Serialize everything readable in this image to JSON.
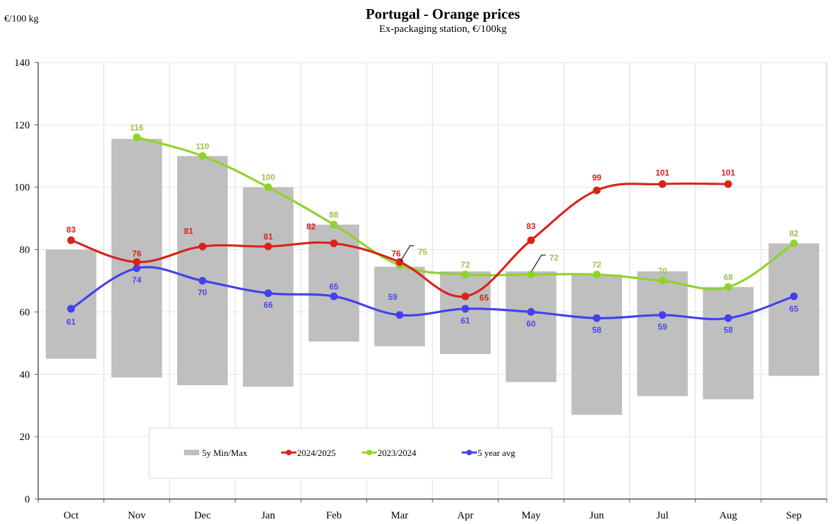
{
  "chart_data": {
    "type": "bar+line",
    "title": "Portugal  -  Orange prices",
    "subtitle": "Ex-packaging  station, €/100kg",
    "ylabel": "€/100 kg",
    "xlabel": "",
    "ylim": [
      0,
      140
    ],
    "yticks": [
      0,
      20,
      40,
      60,
      80,
      100,
      120,
      140
    ],
    "grid": true,
    "legend_position": "bottom-center",
    "categories": [
      "Oct",
      "Nov",
      "Dec",
      "Jan",
      "Feb",
      "Mar",
      "Apr",
      "May",
      "Jun",
      "Jul",
      "Aug",
      "Sep"
    ],
    "range_series": {
      "name": "5y Min/Max",
      "color": "#bfbfbf",
      "min": [
        45,
        39,
        36.5,
        36,
        50.5,
        49,
        46.5,
        37.5,
        27,
        33,
        32,
        39.5
      ],
      "max": [
        80,
        115.5,
        110,
        100,
        88,
        74.5,
        73,
        73,
        72,
        73,
        68,
        82
      ]
    },
    "series": [
      {
        "name": "2024/2025",
        "color": "#d9231a",
        "values": [
          83,
          76,
          81,
          81,
          82,
          76,
          65,
          83,
          99,
          101,
          101,
          null
        ],
        "labels": [
          "83",
          "76",
          "81",
          "81",
          "82",
          "76",
          "65",
          "83",
          "99",
          "101",
          "101",
          ""
        ]
      },
      {
        "name": "2023/2024",
        "color": "#8fd32a",
        "label_color": "#9cc24a",
        "values": [
          null,
          116,
          110,
          100,
          88,
          75,
          72,
          72,
          72,
          70,
          68,
          82
        ],
        "labels": [
          "",
          "116",
          "110",
          "100",
          "88",
          "75",
          "72",
          "72",
          "72",
          "70",
          "68",
          "82"
        ]
      },
      {
        "name": "5 year avg",
        "color": "#4141ee",
        "label_color": "#4a4ae0",
        "values": [
          61,
          74,
          70,
          66,
          65,
          59,
          61,
          60,
          58,
          59,
          58,
          65
        ],
        "labels": [
          "61",
          "74",
          "70",
          "66",
          "65",
          "59",
          "61",
          "60",
          "58",
          "59",
          "58",
          "65"
        ]
      }
    ]
  }
}
